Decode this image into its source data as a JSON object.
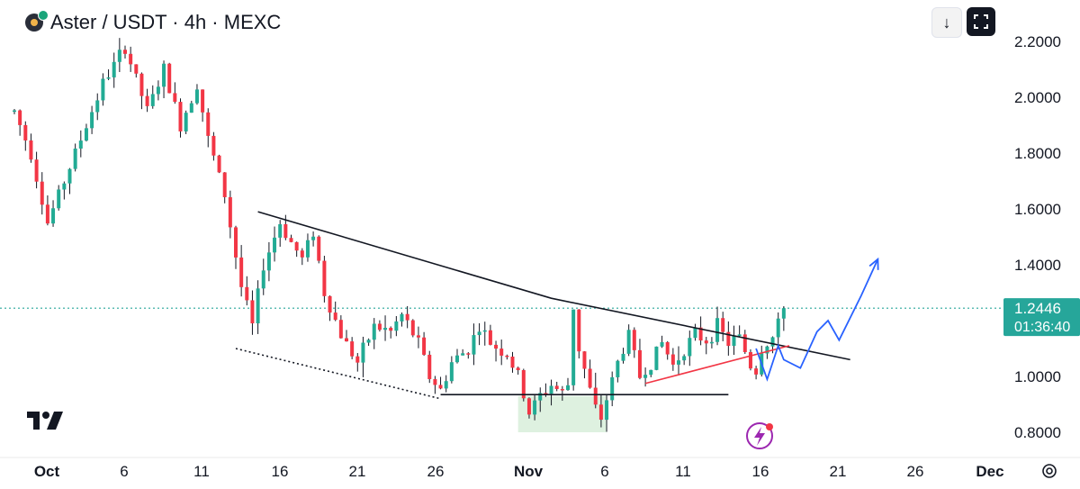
{
  "header": {
    "title": "Aster / USDT · 4h · MEXC",
    "download_icon": "download-icon",
    "fullscreen_icon": "fullscreen-icon"
  },
  "chart_data": {
    "type": "candlestick",
    "symbol": "Aster / USDT",
    "interval": "4h",
    "exchange": "MEXC",
    "y_ticks": [
      "2.2000",
      "2.0000",
      "1.8000",
      "1.6000",
      "1.4000",
      "1.0000",
      "0.8000"
    ],
    "x_ticks": [
      "Oct",
      "6",
      "11",
      "16",
      "21",
      "26",
      "Nov",
      "6",
      "11",
      "16",
      "21",
      "26",
      "Dec"
    ],
    "ylim": [
      0.78,
      2.26
    ],
    "last_price": "1.2446",
    "countdown": "01:36:40",
    "colors": {
      "up": "#22ab94",
      "down": "#f23645",
      "projection": "#2962ff",
      "support_zone": "#d8efdb",
      "price_line": "#26a69a"
    },
    "price_path": [
      [
        0,
        1.95
      ],
      [
        3,
        1.8
      ],
      [
        6,
        1.55
      ],
      [
        9,
        1.7
      ],
      [
        12,
        1.85
      ],
      [
        16,
        2.05
      ],
      [
        20,
        2.18
      ],
      [
        24,
        1.95
      ],
      [
        27,
        2.1
      ],
      [
        30,
        1.9
      ],
      [
        33,
        2.05
      ],
      [
        35,
        1.85
      ],
      [
        38,
        1.65
      ],
      [
        41,
        1.32
      ],
      [
        43,
        1.18
      ],
      [
        45,
        1.4
      ],
      [
        48,
        1.55
      ],
      [
        50,
        1.48
      ],
      [
        52,
        1.42
      ],
      [
        54,
        1.52
      ],
      [
        56,
        1.3
      ],
      [
        59,
        1.15
      ],
      [
        62,
        1.05
      ],
      [
        65,
        1.18
      ],
      [
        68,
        1.16
      ],
      [
        70,
        1.22
      ],
      [
        73,
        1.12
      ],
      [
        75,
        1.0
      ],
      [
        77,
        0.95
      ],
      [
        79,
        1.05
      ],
      [
        82,
        1.1
      ],
      [
        84,
        1.18
      ],
      [
        86,
        1.12
      ],
      [
        89,
        1.08
      ],
      [
        91,
        1.0
      ],
      [
        93,
        0.87
      ],
      [
        95,
        0.93
      ],
      [
        97,
        0.97
      ],
      [
        99,
        0.94
      ],
      [
        100,
        0.97
      ],
      [
        101,
        1.25
      ],
      [
        102,
        1.1
      ],
      [
        104,
        0.95
      ],
      [
        105,
        0.88
      ],
      [
        106,
        0.85
      ],
      [
        107,
        0.92
      ],
      [
        109,
        1.05
      ],
      [
        111,
        1.15
      ],
      [
        113,
        1.0
      ],
      [
        115,
        1.05
      ],
      [
        117,
        1.12
      ],
      [
        119,
        1.04
      ],
      [
        121,
        1.1
      ],
      [
        123,
        1.15
      ],
      [
        125,
        1.13
      ],
      [
        127,
        1.18
      ],
      [
        129,
        1.12
      ],
      [
        131,
        1.14
      ],
      [
        133,
        1.04
      ],
      [
        134,
        1.02
      ],
      [
        135,
        1.1
      ],
      [
        137,
        1.14
      ],
      [
        138,
        1.18
      ],
      [
        139,
        1.2446
      ]
    ],
    "drawings": [
      {
        "name": "descending-trendline",
        "color": "#131722",
        "dash": false,
        "points": [
          [
            44,
            1.59
          ],
          [
            97,
            1.28
          ],
          [
            151,
            1.06
          ]
        ]
      },
      {
        "name": "lower-dotted-trendline",
        "color": "#131722",
        "dash": true,
        "points": [
          [
            40,
            1.1
          ],
          [
            77,
            0.92
          ]
        ]
      },
      {
        "name": "support-line",
        "color": "#131722",
        "dash": false,
        "points": [
          [
            77,
            0.935
          ],
          [
            129,
            0.935
          ]
        ]
      },
      {
        "name": "rising-red-trendline",
        "color": "#f23645",
        "dash": false,
        "points": [
          [
            114,
            0.975
          ],
          [
            140,
            1.11
          ]
        ]
      },
      {
        "name": "projection-path",
        "color": "#2962ff",
        "dash": false,
        "points": [
          [
            134,
            1.1
          ],
          [
            136,
            0.99
          ],
          [
            138,
            1.11
          ],
          [
            139,
            1.06
          ],
          [
            142,
            1.03
          ],
          [
            145,
            1.16
          ],
          [
            147,
            1.2
          ],
          [
            149,
            1.13
          ],
          [
            153,
            1.29
          ],
          [
            156,
            1.42
          ]
        ],
        "arrow": true
      }
    ],
    "support_zone": {
      "x_start": 91,
      "x_end": 107,
      "y_low": 0.8,
      "y_high": 0.93
    }
  }
}
